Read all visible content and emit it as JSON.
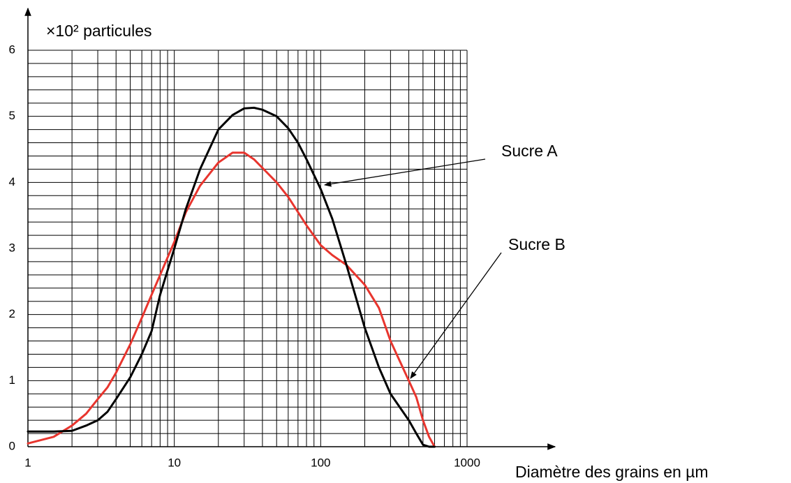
{
  "chart_data": {
    "type": "line",
    "y_label": "×10² particules",
    "x_label": "Diamètre des grains en µm",
    "x": [
      1,
      1.5,
      2,
      2.5,
      3,
      3.5,
      4,
      5,
      6,
      7,
      8,
      10,
      12,
      15,
      20,
      25,
      30,
      35,
      40,
      50,
      60,
      70,
      80,
      100,
      120,
      150,
      200,
      250,
      300,
      400,
      450,
      500,
      550,
      600
    ],
    "series": [
      {
        "name": "Sucre A",
        "color": "#000000",
        "values": [
          0.23,
          0.23,
          0.24,
          0.32,
          0.4,
          0.53,
          0.72,
          1.05,
          1.4,
          1.75,
          2.3,
          3.0,
          3.6,
          4.2,
          4.8,
          5.02,
          5.12,
          5.13,
          5.1,
          5.0,
          4.82,
          4.6,
          4.35,
          3.9,
          3.45,
          2.75,
          1.8,
          1.2,
          0.8,
          0.4,
          0.2,
          0.03,
          0,
          0
        ]
      },
      {
        "name": "Sucre B",
        "color": "#e8352e",
        "values": [
          0.05,
          0.15,
          0.32,
          0.5,
          0.72,
          0.9,
          1.12,
          1.55,
          1.95,
          2.3,
          2.6,
          3.1,
          3.55,
          3.95,
          4.3,
          4.45,
          4.45,
          4.35,
          4.22,
          4.0,
          3.78,
          3.55,
          3.35,
          3.05,
          2.9,
          2.75,
          2.45,
          2.1,
          1.6,
          1.0,
          0.75,
          0.4,
          0.15,
          0
        ]
      }
    ],
    "xscale": "log",
    "xlim": [
      1,
      1000
    ],
    "xticks": [
      1,
      10,
      100,
      1000
    ],
    "ylim": [
      0,
      6
    ],
    "yticks": [
      0,
      1,
      2,
      3,
      4,
      5,
      6
    ],
    "grid": true
  }
}
